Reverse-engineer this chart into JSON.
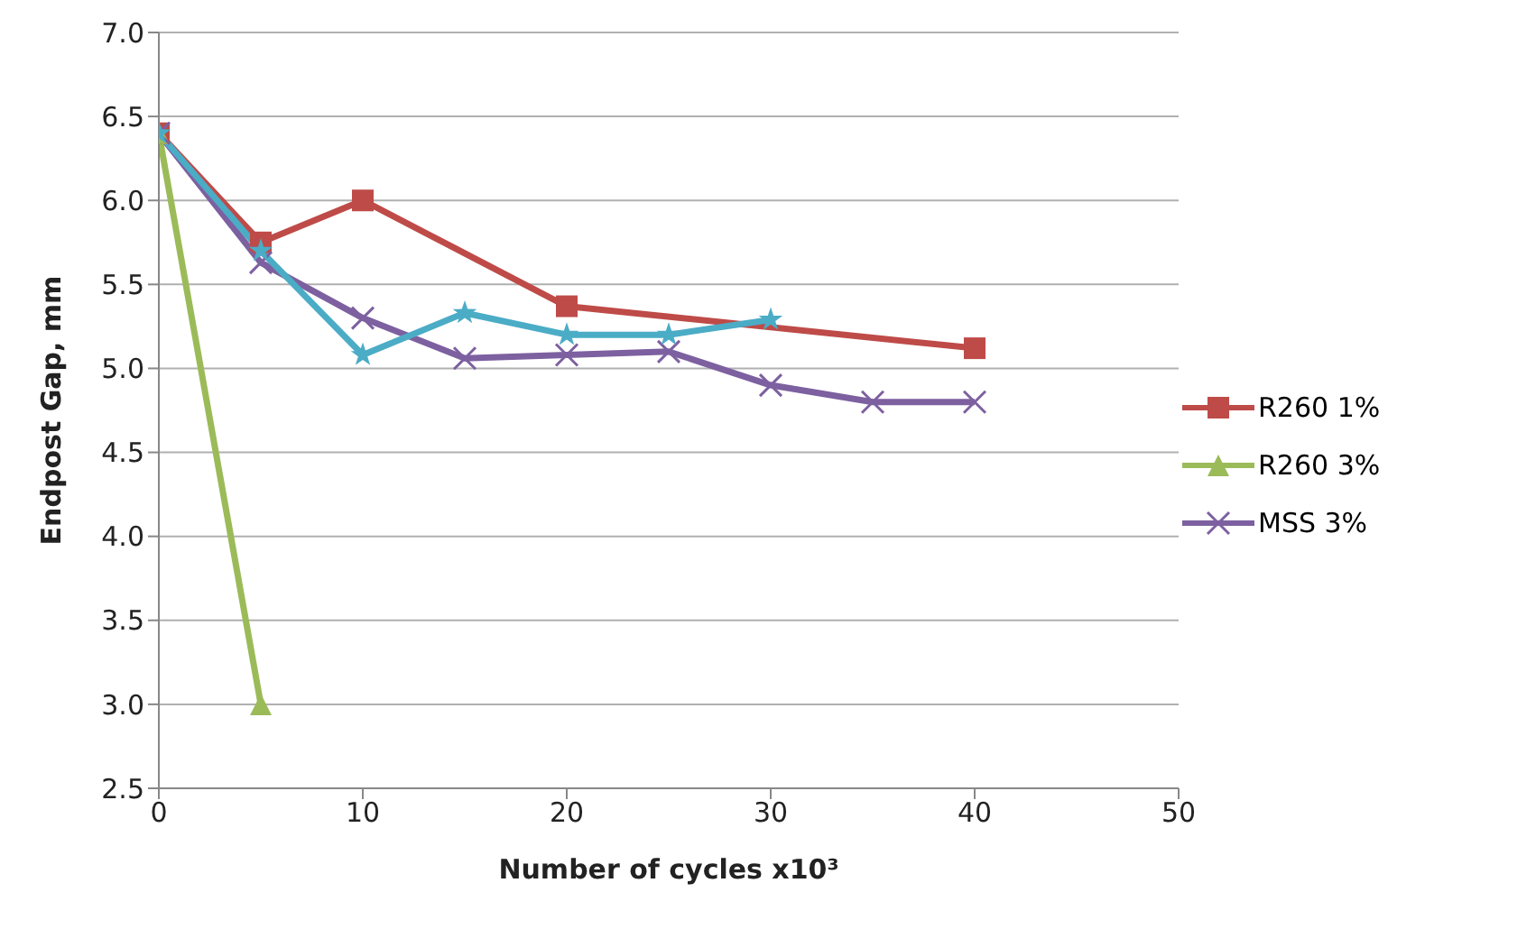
{
  "chart_data": {
    "type": "line",
    "xlabel": "Number of cycles x10³",
    "ylabel": "Endpost Gap, mm",
    "xlim": [
      0,
      50
    ],
    "xticks": [
      0,
      10,
      20,
      30,
      40,
      50
    ],
    "ylim": [
      2.5,
      7.0
    ],
    "yticks": [
      {
        "value": 2.5,
        "label": "2.5"
      },
      {
        "value": 3,
        "label": "3.0"
      },
      {
        "value": 3.5,
        "label": "3.5"
      },
      {
        "value": 4,
        "label": "4.0"
      },
      {
        "value": 4.5,
        "label": "4.5"
      },
      {
        "value": 5,
        "label": "5.0"
      },
      {
        "value": 5.5,
        "label": "5.5"
      },
      {
        "value": 6,
        "label": "6.0"
      },
      {
        "value": 6.5,
        "label": "6.5"
      },
      {
        "value": 7,
        "label": "7.0"
      }
    ],
    "grid": "y",
    "legend": "right",
    "line_style": "solid",
    "series": [
      {
        "name": "R260 1%",
        "color": "#be4b48",
        "marker": "square",
        "x": [
          0,
          5,
          10,
          20,
          40
        ],
        "values": [
          6.4,
          5.75,
          6.0,
          5.37,
          5.12
        ]
      },
      {
        "name": "R260 3%",
        "color": "#9bbb59",
        "marker": "triangle",
        "x": [
          0,
          5
        ],
        "values": [
          6.4,
          3.0
        ]
      },
      {
        "name": "MSS 3%",
        "color": "#7d60a0",
        "marker": "cross",
        "x": [
          0,
          5,
          10,
          15,
          20,
          25,
          30,
          35,
          40
        ],
        "values": [
          6.4,
          5.63,
          5.3,
          5.06,
          5.08,
          5.1,
          4.9,
          4.8,
          4.8
        ]
      },
      {
        "color": "#4bacc6",
        "marker": "star",
        "x": [
          0,
          5,
          10,
          15,
          20,
          25,
          30
        ],
        "values": [
          6.4,
          5.7,
          5.08,
          5.33,
          5.2,
          5.2,
          5.29
        ]
      }
    ]
  }
}
